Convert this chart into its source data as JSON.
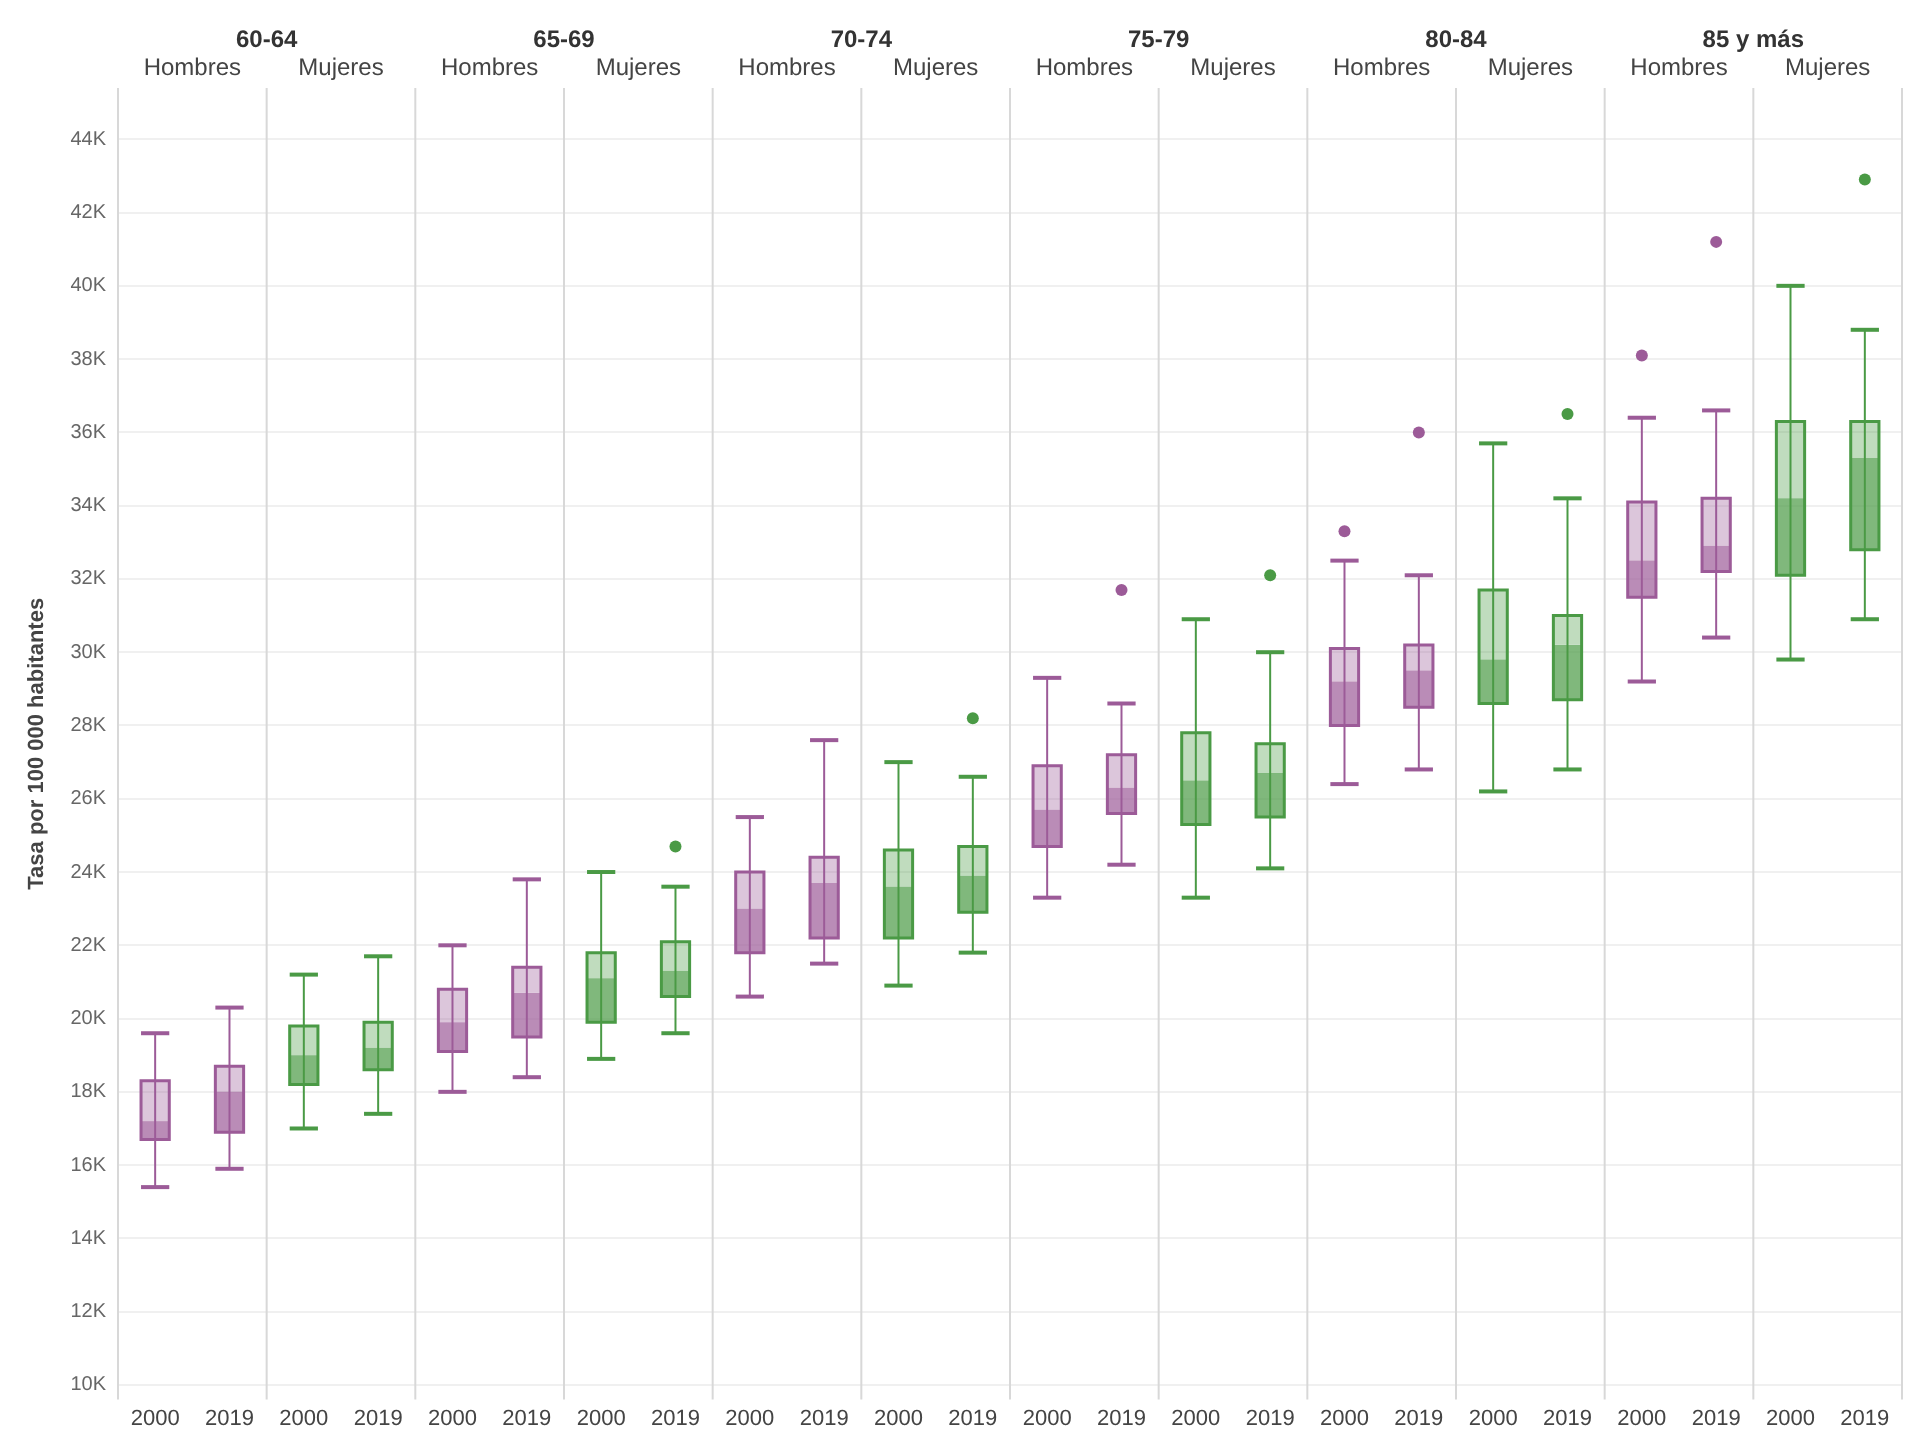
{
  "chart_data": {
    "type": "box",
    "ylabel": "Tasa por 100 000 habitantes",
    "annotations": [
      "60-64",
      "65-69",
      "70-74",
      "75-79",
      "80-84",
      "85 y más",
      "Hombres",
      "Mujeres",
      "Hombres",
      "Mujeres",
      "Hombres",
      "Mujeres",
      "Hombres",
      "Mujeres",
      "Hombres",
      "Mujeres",
      "Hombres",
      "Mujeres"
    ],
    "categories": [
      "2000",
      "2019",
      "2000",
      "2019",
      "2000",
      "2019",
      "2000",
      "2019",
      "2000",
      "2019",
      "2000",
      "2019",
      "2000",
      "2019",
      "2000",
      "2019",
      "2000",
      "2019",
      "2000",
      "2019",
      "2000",
      "2019",
      "2000",
      "2019"
    ],
    "colors": [
      "#9c5b98",
      "#9c5b98",
      "#4a9a45",
      "#4a9a45",
      "#9c5b98",
      "#9c5b98",
      "#4a9a45",
      "#4a9a45",
      "#9c5b98",
      "#9c5b98",
      "#4a9a45",
      "#4a9a45",
      "#9c5b98",
      "#9c5b98",
      "#4a9a45",
      "#4a9a45",
      "#9c5b98",
      "#9c5b98",
      "#4a9a45",
      "#4a9a45",
      "#9c5b98",
      "#9c5b98",
      "#4a9a45",
      "#4a9a45"
    ],
    "boxes": [
      {
        "low": 15400,
        "q1": 16700,
        "median": 17200,
        "q3": 18300,
        "high": 19600
      },
      {
        "low": 15900,
        "q1": 16900,
        "median": 18000,
        "q3": 18700,
        "high": 20300
      },
      {
        "low": 17000,
        "q1": 18200,
        "median": 19000,
        "q3": 19800,
        "high": 21200
      },
      {
        "low": 17400,
        "q1": 18600,
        "median": 19200,
        "q3": 19900,
        "high": 21700
      },
      {
        "low": 18000,
        "q1": 19100,
        "median": 19900,
        "q3": 20800,
        "high": 22000
      },
      {
        "low": 18400,
        "q1": 19500,
        "median": 20700,
        "q3": 21400,
        "high": 23800
      },
      {
        "low": 18900,
        "q1": 19900,
        "median": 21100,
        "q3": 21800,
        "high": 24000
      },
      {
        "low": 19600,
        "q1": 20600,
        "median": 21300,
        "q3": 22100,
        "high": 23600,
        "outliers": [
          24700
        ]
      },
      {
        "low": 20600,
        "q1": 21800,
        "median": 23000,
        "q3": 24000,
        "high": 25500
      },
      {
        "low": 21500,
        "q1": 22200,
        "median": 23700,
        "q3": 24400,
        "high": 27600
      },
      {
        "low": 20900,
        "q1": 22200,
        "median": 23600,
        "q3": 24600,
        "high": 27000
      },
      {
        "low": 21800,
        "q1": 22900,
        "median": 23900,
        "q3": 24700,
        "high": 26600,
        "outliers": [
          28200
        ]
      },
      {
        "low": 23300,
        "q1": 24700,
        "median": 25700,
        "q3": 26900,
        "high": 29300
      },
      {
        "low": 24200,
        "q1": 25600,
        "median": 26300,
        "q3": 27200,
        "high": 28600,
        "outliers": [
          31700
        ]
      },
      {
        "low": 23300,
        "q1": 25300,
        "median": 26500,
        "q3": 27800,
        "high": 30900
      },
      {
        "low": 24100,
        "q1": 25500,
        "median": 26700,
        "q3": 27500,
        "high": 30000,
        "outliers": [
          32100
        ]
      },
      {
        "low": 26400,
        "q1": 28000,
        "median": 29200,
        "q3": 30100,
        "high": 32500,
        "outliers": [
          33300
        ]
      },
      {
        "low": 26800,
        "q1": 28500,
        "median": 29500,
        "q3": 30200,
        "high": 32100,
        "outliers": [
          36000
        ]
      },
      {
        "low": 26200,
        "q1": 28600,
        "median": 29800,
        "q3": 31700,
        "high": 35700
      },
      {
        "low": 26800,
        "q1": 28700,
        "median": 30200,
        "q3": 31000,
        "high": 34200,
        "outliers": [
          36500
        ]
      },
      {
        "low": 29200,
        "q1": 31500,
        "median": 32500,
        "q3": 34100,
        "high": 36400,
        "outliers": [
          38100
        ]
      },
      {
        "low": 30400,
        "q1": 32200,
        "median": 32900,
        "q3": 34200,
        "high": 36600,
        "outliers": [
          41200
        ]
      },
      {
        "low": 29800,
        "q1": 32100,
        "median": 34200,
        "q3": 36300,
        "high": 40000
      },
      {
        "low": 30900,
        "q1": 32800,
        "median": 35300,
        "q3": 36300,
        "high": 38800,
        "outliers": [
          42900
        ]
      }
    ],
    "ylim": [
      9600,
      45400
    ],
    "yticks": [
      {
        "value": 10000,
        "label": "10K"
      },
      {
        "value": 12000,
        "label": "12K"
      },
      {
        "value": 14000,
        "label": "14K"
      },
      {
        "value": 16000,
        "label": "16K"
      },
      {
        "value": 18000,
        "label": "18K"
      },
      {
        "value": 20000,
        "label": "20K"
      },
      {
        "value": 22000,
        "label": "22K"
      },
      {
        "value": 24000,
        "label": "24K"
      },
      {
        "value": 26000,
        "label": "26K"
      },
      {
        "value": 28000,
        "label": "28K"
      },
      {
        "value": 30000,
        "label": "30K"
      },
      {
        "value": 32000,
        "label": "32K"
      },
      {
        "value": 34000,
        "label": "34K"
      },
      {
        "value": 36000,
        "label": "36K"
      },
      {
        "value": 38000,
        "label": "38K"
      },
      {
        "value": 40000,
        "label": "40K"
      },
      {
        "value": 42000,
        "label": "42K"
      },
      {
        "value": 44000,
        "label": "44K"
      }
    ],
    "grid": "y"
  }
}
